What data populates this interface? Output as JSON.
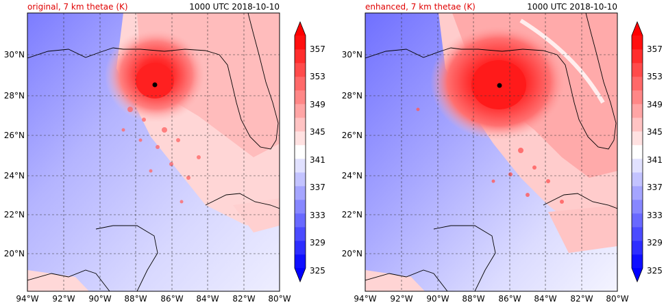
{
  "figure": {
    "panels": [
      {
        "title_left": "original, 7 km thetae (K)",
        "title_right": "1000 UTC 2018-10-10",
        "lon_ticks": [
          "94°W",
          "92°W",
          "90°W",
          "88°W",
          "86°W",
          "84°W",
          "82°W",
          "80°W"
        ],
        "lat_ticks": [
          "30°N",
          "28°N",
          "26°N",
          "24°N",
          "22°N",
          "20°N"
        ],
        "colorbar_ticks": [
          "357",
          "353",
          "349",
          "345",
          "341",
          "337",
          "333",
          "329",
          "325"
        ]
      },
      {
        "title_left": "enhanced, 7 km thetae (K)",
        "title_right": "1000 UTC 2018-10-10",
        "lon_ticks": [
          "94°W",
          "92°W",
          "90°W",
          "88°W",
          "86°W",
          "84°W",
          "82°W",
          "80°W"
        ],
        "lat_ticks": [
          "30°N",
          "28°N",
          "26°N",
          "24°N",
          "22°N",
          "20°N"
        ],
        "colorbar_ticks": [
          "357",
          "353",
          "349",
          "345",
          "341",
          "337",
          "333",
          "329",
          "325"
        ]
      }
    ],
    "map_extent": {
      "lon_west": -94,
      "lon_east": -80,
      "lat_south": 18,
      "lat_north": 32
    },
    "colorbar_levels": [
      325,
      327,
      329,
      331,
      333,
      335,
      337,
      339,
      341,
      343,
      345,
      347,
      349,
      351,
      353,
      355,
      357,
      359
    ],
    "colors": {
      "cold": "#0000ff",
      "neutral": "#ffffff",
      "warm": "#ff0000",
      "title_accent": "#e00000"
    }
  }
}
